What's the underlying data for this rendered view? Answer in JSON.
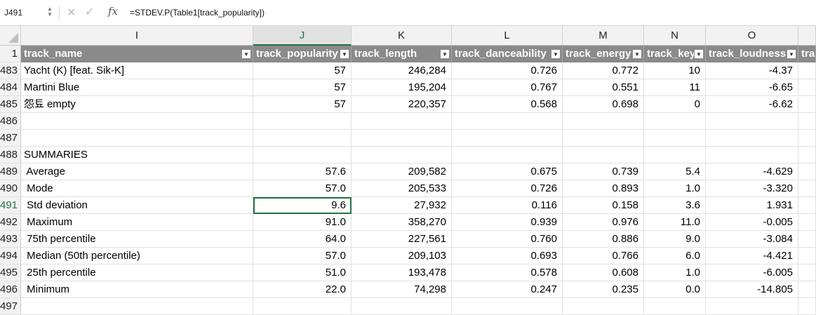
{
  "formula_bar": {
    "name_box": "J491",
    "formula": "=STDEV.P(Table1[track_popularity])",
    "cancel_icon": "✕",
    "enter_icon": "✓",
    "fx_label": "fx"
  },
  "columns": [
    "I",
    "J",
    "K",
    "L",
    "M",
    "N",
    "O"
  ],
  "active_column": "J",
  "table_headers": [
    "track_name",
    "track_popularity",
    "track_length",
    "track_danceability",
    "track_energy",
    "track_key",
    "track_loudness",
    "tra"
  ],
  "rows": [
    {
      "num": "1",
      "header": true
    },
    {
      "num": "483",
      "cells": [
        "Yacht (K) [feat. Sik-K]",
        "57",
        "246,284",
        "0.726",
        "0.772",
        "10",
        "-4.37"
      ]
    },
    {
      "num": "484",
      "cells": [
        "Martini Blue",
        "57",
        "195,204",
        "0.767",
        "0.551",
        "11",
        "-6.65"
      ]
    },
    {
      "num": "485",
      "cells": [
        "怨툐 empty",
        "57",
        "220,357",
        "0.568",
        "0.698",
        "0",
        "-6.62"
      ]
    },
    {
      "num": "486",
      "cells": [
        "",
        "",
        "",
        "",
        "",
        "",
        ""
      ]
    },
    {
      "num": "487",
      "cells": [
        "",
        "",
        "",
        "",
        "",
        "",
        ""
      ]
    },
    {
      "num": "488",
      "cells": [
        "SUMMARIES",
        "",
        "",
        "",
        "",
        "",
        ""
      ]
    },
    {
      "num": "489",
      "cells": [
        " Average",
        "57.6",
        "209,582",
        "0.675",
        "0.739",
        "5.4",
        "-4.629"
      ]
    },
    {
      "num": "490",
      "cells": [
        " Mode",
        "57.0",
        "205,533",
        "0.726",
        "0.893",
        "1.0",
        "-3.320"
      ]
    },
    {
      "num": "491",
      "cells": [
        " Std deviation",
        "9.6",
        "27,932",
        "0.116",
        "0.158",
        "3.6",
        "1.931"
      ]
    },
    {
      "num": "492",
      "cells": [
        " Maximum",
        "91.0",
        "358,270",
        "0.939",
        "0.976",
        "11.0",
        "-0.005"
      ]
    },
    {
      "num": "493",
      "cells": [
        " 75th percentile",
        "64.0",
        "227,561",
        "0.760",
        "0.886",
        "9.0",
        "-3.084"
      ]
    },
    {
      "num": "494",
      "cells": [
        " Median (50th percentile)",
        "57.0",
        "209,103",
        "0.693",
        "0.766",
        "6.0",
        "-4.421"
      ]
    },
    {
      "num": "495",
      "cells": [
        " 25th percentile",
        "51.0",
        "193,478",
        "0.578",
        "0.608",
        "1.0",
        "-6.005"
      ]
    },
    {
      "num": "496",
      "cells": [
        " Minimum",
        "22.0",
        "74,298",
        "0.247",
        "0.235",
        "0.0",
        "-14.805"
      ]
    },
    {
      "num": "497",
      "cells": [
        "",
        "",
        "",
        "",
        "",
        "",
        ""
      ]
    }
  ],
  "active_row": "491",
  "colors": {
    "accent": "#217346",
    "table_header_bg": "#8a8a8a",
    "table_header_text": "#ffffff"
  }
}
